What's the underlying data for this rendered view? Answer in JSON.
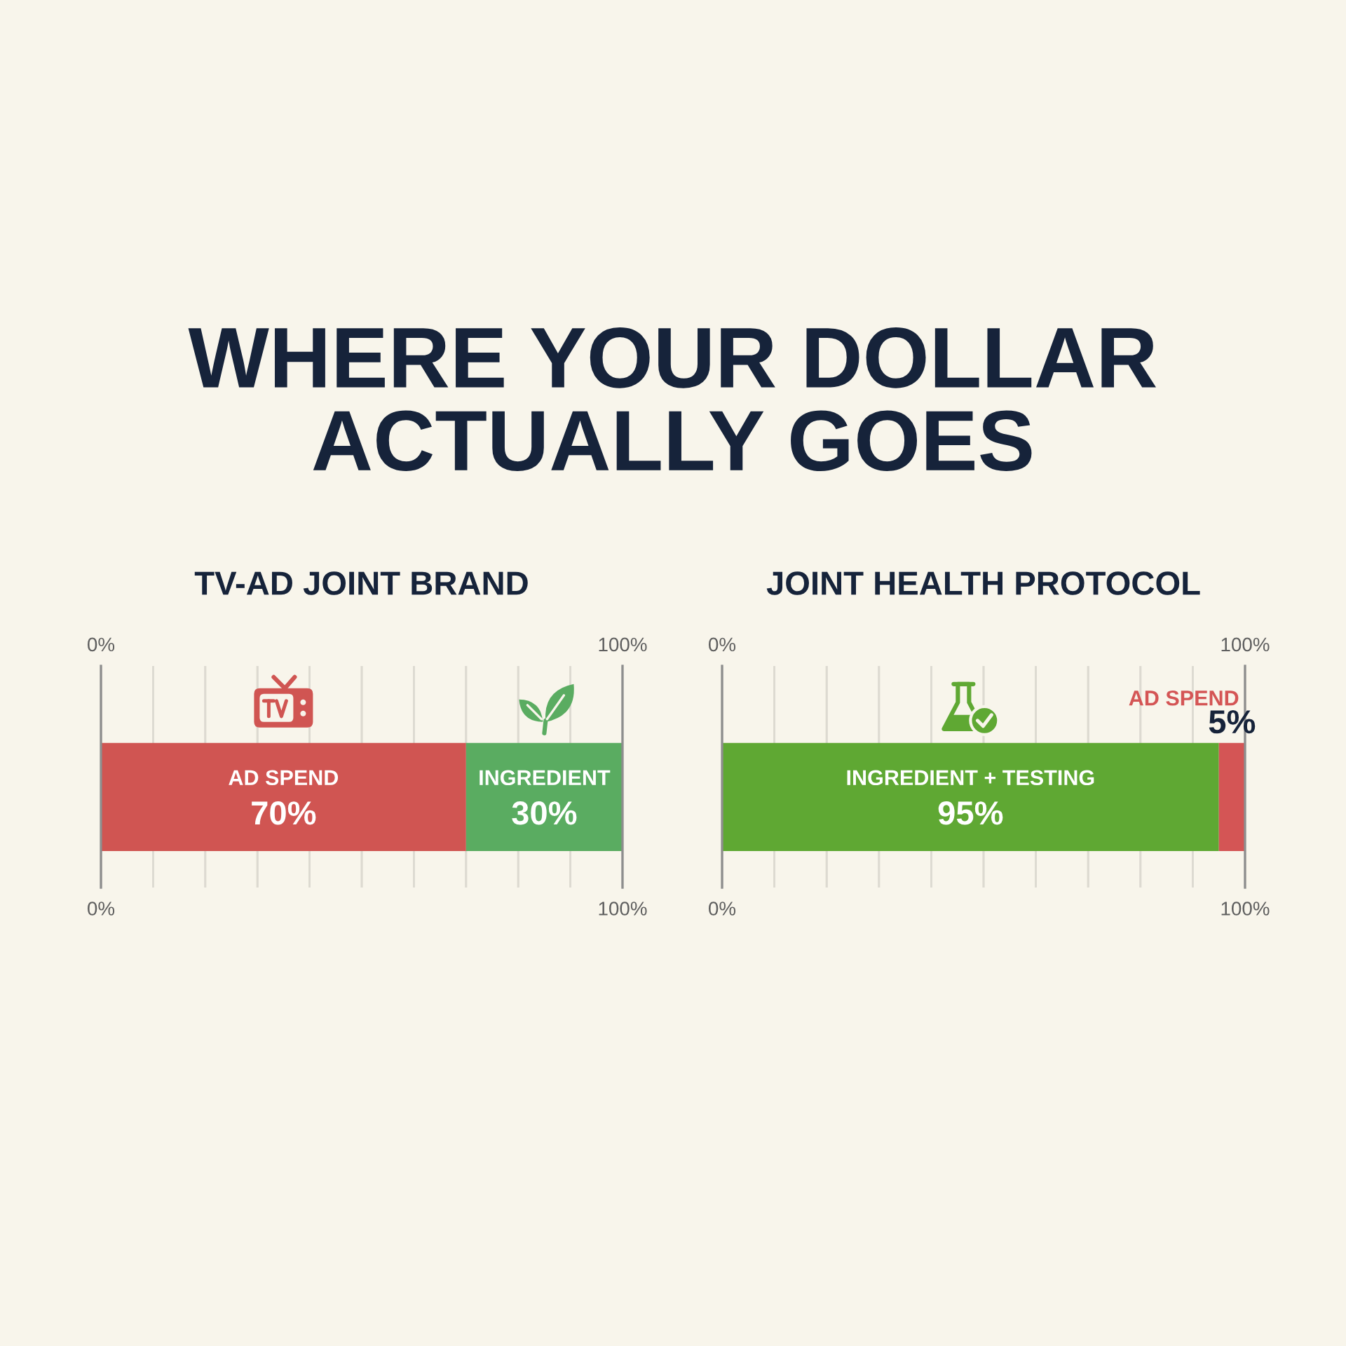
{
  "chart_data": [
    {
      "type": "bar",
      "title": "WHERE YOUR DOLLAR ACTUALLY GOES",
      "subtitle": "TV-AD JOINT BRAND",
      "categories": [
        null
      ],
      "orientation": "horizontal",
      "stacked": true,
      "series": [
        {
          "name": "AD SPEND",
          "color": "#d05552",
          "values": [
            70
          ],
          "value_labels": [
            "70%"
          ]
        },
        {
          "name": "INGREDIENT",
          "color": "#5aac61",
          "values": [
            30
          ],
          "value_labels": [
            "30%"
          ]
        }
      ],
      "xlim": [
        0,
        100
      ],
      "xticks": [
        {
          "value": 0,
          "label": "0%"
        },
        {
          "value": 10,
          "label": null
        },
        {
          "value": 20,
          "label": null
        },
        {
          "value": 30,
          "label": null
        },
        {
          "value": 40,
          "label": null
        },
        {
          "value": 50,
          "label": null
        },
        {
          "value": 60,
          "label": null
        },
        {
          "value": 70,
          "label": null
        },
        {
          "value": 80,
          "label": null
        },
        {
          "value": 90,
          "label": null
        },
        {
          "value": 100,
          "label": "100%"
        }
      ],
      "x2lim": [
        0,
        100
      ],
      "x2ticks": [
        {
          "value": 0,
          "label": "0%"
        },
        {
          "value": 10,
          "label": null
        },
        {
          "value": 20,
          "label": null
        },
        {
          "value": 30,
          "label": null
        },
        {
          "value": 40,
          "label": null
        },
        {
          "value": 50,
          "label": null
        },
        {
          "value": 60,
          "label": null
        },
        {
          "value": 70,
          "label": null
        },
        {
          "value": 80,
          "label": null
        },
        {
          "value": 90,
          "label": null
        },
        {
          "value": 100,
          "label": "100%"
        }
      ],
      "grid": "x"
    },
    {
      "type": "bar",
      "subtitle": "JOINT HEALTH PROTOCOL",
      "categories": [
        null
      ],
      "orientation": "horizontal",
      "stacked": true,
      "series": [
        {
          "name": "INGREDIENT + TESTING",
          "color": "#5fa833",
          "values": [
            95
          ],
          "value_labels": [
            "95%"
          ]
        },
        {
          "name": "AD SPEND",
          "color": "#d45555",
          "values": [
            5
          ],
          "value_labels": [
            "5%"
          ]
        }
      ],
      "xlim": [
        0,
        100
      ],
      "xticks": [
        {
          "value": 0,
          "label": "0%"
        },
        {
          "value": 10,
          "label": null
        },
        {
          "value": 20,
          "label": null
        },
        {
          "value": 30,
          "label": null
        },
        {
          "value": 40,
          "label": null
        },
        {
          "value": 50,
          "label": null
        },
        {
          "value": 60,
          "label": null
        },
        {
          "value": 70,
          "label": null
        },
        {
          "value": 80,
          "label": null
        },
        {
          "value": 90,
          "label": null
        },
        {
          "value": 100,
          "label": "100%"
        }
      ],
      "x2lim": [
        0,
        100
      ],
      "x2ticks": [
        {
          "value": 0,
          "label": "0%"
        },
        {
          "value": 10,
          "label": null
        },
        {
          "value": 20,
          "label": null
        },
        {
          "value": 30,
          "label": null
        },
        {
          "value": 40,
          "label": null
        },
        {
          "value": 50,
          "label": null
        },
        {
          "value": 60,
          "label": null
        },
        {
          "value": 70,
          "label": null
        },
        {
          "value": 80,
          "label": null
        },
        {
          "value": 90,
          "label": null
        },
        {
          "value": 100,
          "label": "100%"
        }
      ],
      "grid": "x"
    }
  ]
}
